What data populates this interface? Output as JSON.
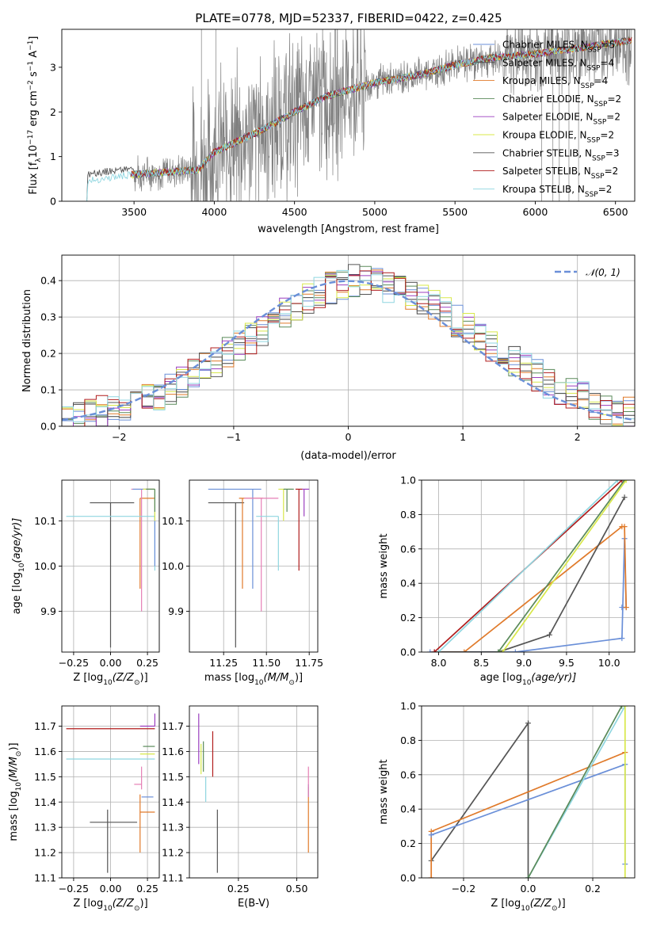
{
  "figure": {
    "title": "PLATE=0778, MJD=52337, FIBERID=0422, z=0.425"
  },
  "colors": {
    "chabrier_miles": "#6a8fd8",
    "salpeter_miles": "#444444",
    "kroupa_miles": "#e07a2a",
    "chabrier_elodie": "#5a8a5a",
    "salpeter_elodie": "#9b3fbf",
    "kroupa_elodie": "#d8e84a",
    "chabrier_stelib": "#555555",
    "salpeter_stelib": "#b01c1c",
    "kroupa_stelib": "#8fd6e0",
    "data": "#808080",
    "pink": "#e67fb5",
    "normal": "#6a8fd8"
  },
  "chart_data": [
    {
      "id": "spectrum",
      "type": "line",
      "xlabel": "wavelength [Angstrom, rest frame]",
      "ylabel_main": "Flux [f",
      "ylabel_sub": "λ",
      "ylabel_rest": "10",
      "ylabel_exp1": "−17",
      "ylabel_mid": " erg cm",
      "ylabel_exp2": "−2",
      "ylabel_mid2": " s",
      "ylabel_exp3": "−1",
      "ylabel_mid3": " A",
      "ylabel_exp4": "−1",
      "ylabel_end": "]",
      "xlim": [
        3050,
        6620
      ],
      "ylim": [
        0,
        3.85
      ],
      "xticks": [
        "3500",
        "4000",
        "4500",
        "5000",
        "5500",
        "6000",
        "6500"
      ],
      "xtick_values": [
        3500,
        4000,
        4500,
        5000,
        5500,
        6000,
        6500
      ],
      "yticks": [
        "0",
        "1",
        "2",
        "3"
      ],
      "ytick_values": [
        0,
        1,
        2,
        3
      ],
      "legend": [
        {
          "name": "Chabrier MILES, N",
          "sub": "SSP",
          "n": "=5",
          "color_key": "chabrier_miles"
        },
        {
          "name": "Salpeter MILES, N",
          "sub": "SSP",
          "n": "=4",
          "color_key": "salpeter_miles"
        },
        {
          "name": "Kroupa MILES, N",
          "sub": "SSP",
          "n": "=4",
          "color_key": "kroupa_miles"
        },
        {
          "name": "Chabrier ELODIE, N",
          "sub": "SSP",
          "n": "=2",
          "color_key": "chabrier_elodie"
        },
        {
          "name": "Salpeter ELODIE, N",
          "sub": "SSP",
          "n": "=2",
          "color_key": "salpeter_elodie"
        },
        {
          "name": "Kroupa ELODIE, N",
          "sub": "SSP",
          "n": "=2",
          "color_key": "kroupa_elodie"
        },
        {
          "name": "Chabrier STELIB, N",
          "sub": "SSP",
          "n": "=3",
          "color_key": "chabrier_stelib"
        },
        {
          "name": "Salpeter STELIB, N",
          "sub": "SSP",
          "n": "=2",
          "color_key": "salpeter_stelib"
        },
        {
          "name": "Kroupa STELIB, N",
          "sub": "SSP",
          "n": "=2",
          "color_key": "kroupa_stelib"
        }
      ],
      "legend_placement": "top-right",
      "continuum": {
        "x": [
          3200,
          3500,
          3900,
          4000,
          4300,
          4500,
          4700,
          5000,
          5300,
          5500,
          5700,
          6000,
          6300,
          6600
        ],
        "y": [
          0.45,
          0.6,
          0.7,
          1.1,
          1.6,
          2.0,
          2.35,
          2.65,
          2.85,
          3.05,
          3.2,
          3.3,
          3.45,
          3.6
        ]
      }
    },
    {
      "id": "residuals",
      "type": "histogram",
      "xlabel": "(data-model)/error",
      "ylabel": "Normed distribution",
      "xlim": [
        -2.5,
        2.5
      ],
      "ylim": [
        0,
        0.47
      ],
      "xticks": [
        "−2",
        "−1",
        "0",
        "1",
        "2"
      ],
      "xtick_values": [
        -2,
        -1,
        0,
        1,
        2
      ],
      "yticks": [
        "0.0",
        "0.1",
        "0.2",
        "0.3",
        "0.4"
      ],
      "ytick_values": [
        0,
        0.1,
        0.2,
        0.3,
        0.4
      ],
      "legend_label": "𝒩(0, 1)",
      "legend_placement": "top-right",
      "bin_width": 0.1,
      "bins_start": -2.5,
      "base_values": [
        0.02,
        0.03,
        0.04,
        0.04,
        0.05,
        0.06,
        0.07,
        0.08,
        0.08,
        0.1,
        0.12,
        0.14,
        0.16,
        0.18,
        0.2,
        0.22,
        0.24,
        0.26,
        0.29,
        0.31,
        0.33,
        0.35,
        0.37,
        0.38,
        0.39,
        0.4,
        0.4,
        0.39,
        0.38,
        0.37,
        0.36,
        0.35,
        0.33,
        0.31,
        0.29,
        0.27,
        0.24,
        0.22,
        0.2,
        0.18,
        0.16,
        0.14,
        0.12,
        0.1,
        0.09,
        0.08,
        0.06,
        0.05,
        0.04,
        0.04
      ]
    },
    {
      "id": "age_Z",
      "type": "errorbar",
      "xlabel": "Z [log",
      "xlabel_sub": "10",
      "xlabel_rest": "(Z/Z",
      "xlabel_sun": "⊙",
      "xlabel_end": ")]",
      "ylabel": "age  [log",
      "ylabel_sub": "10",
      "ylabel_rest": "(age/yr)]",
      "xlim": [
        -0.33,
        0.33
      ],
      "ylim": [
        9.81,
        10.19
      ],
      "xticks": [
        "−0.25",
        "0.00",
        "0.25"
      ],
      "xtick_values": [
        -0.25,
        0,
        0.25
      ],
      "yticks": [
        "9.9",
        "10.0",
        "10.1"
      ],
      "ytick_values": [
        9.9,
        10.0,
        10.1
      ],
      "points": [
        {
          "x": 0.0,
          "y": 10.14,
          "xlo": 0.14,
          "xhi": 0.16,
          "ylo": 0.32,
          "yhi": 0.0,
          "color_key": "chabrier_stelib"
        },
        {
          "x": 0.2,
          "y": 10.15,
          "xlo": 0.0,
          "xhi": 0.1,
          "ylo": 0.2,
          "yhi": 0.0,
          "color_key": "kroupa_miles"
        },
        {
          "x": 0.21,
          "y": 10.17,
          "xlo": 0.07,
          "xhi": 0.08,
          "ylo": 0.27,
          "yhi": 0.0,
          "color_key": "pink"
        },
        {
          "x": 0.3,
          "y": 10.11,
          "xlo": 0.6,
          "xhi": 0.0,
          "ylo": 0.12,
          "yhi": 0.0,
          "color_key": "kroupa_stelib"
        },
        {
          "x": 0.3,
          "y": 10.17,
          "xlo": 0.15,
          "xhi": 0.0,
          "ylo": 0.17,
          "yhi": 0.0,
          "color_key": "chabrier_miles"
        },
        {
          "x": 0.3,
          "y": 10.17,
          "xlo": 0.08,
          "xhi": 0.0,
          "ylo": 0.07,
          "yhi": 0.0,
          "color_key": "kroupa_elodie"
        },
        {
          "x": 0.3,
          "y": 10.17,
          "xlo": 0.06,
          "xhi": 0.0,
          "ylo": 0.05,
          "yhi": 0.0,
          "color_key": "chabrier_elodie"
        }
      ]
    },
    {
      "id": "age_mass",
      "type": "errorbar",
      "xlabel": "mass [log",
      "xlabel_sub": "10",
      "xlabel_rest": "(M/M",
      "xlabel_sun": "⊙",
      "xlabel_end": ")]",
      "xlim": [
        11.05,
        11.8
      ],
      "ylim": [
        9.81,
        10.19
      ],
      "xticks": [
        "11.25",
        "11.50",
        "11.75"
      ],
      "xtick_values": [
        11.25,
        11.5,
        11.75
      ],
      "yticks": [
        "9.9",
        "10.0",
        "10.1"
      ],
      "ytick_values": [
        9.9,
        10.0,
        10.1
      ],
      "points": [
        {
          "x": 11.32,
          "y": 10.14,
          "xlo": 0.16,
          "xhi": 0.05,
          "ylo": 0.32,
          "yhi": 0.0,
          "color_key": "chabrier_stelib"
        },
        {
          "x": 11.36,
          "y": 10.15,
          "xlo": 0.02,
          "xhi": 0.12,
          "ylo": 0.2,
          "yhi": 0.0,
          "color_key": "kroupa_miles"
        },
        {
          "x": 11.42,
          "y": 10.17,
          "xlo": 0.26,
          "xhi": 0.05,
          "ylo": 0.22,
          "yhi": 0.0,
          "color_key": "chabrier_miles"
        },
        {
          "x": 11.47,
          "y": 10.15,
          "xlo": 0.1,
          "xhi": 0.1,
          "ylo": 0.25,
          "yhi": 0.0,
          "color_key": "pink"
        },
        {
          "x": 11.57,
          "y": 10.11,
          "xlo": 0.13,
          "xhi": 0.0,
          "ylo": 0.12,
          "yhi": 0.0,
          "color_key": "kroupa_stelib"
        },
        {
          "x": 11.6,
          "y": 10.17,
          "xlo": 0.03,
          "xhi": 0.05,
          "ylo": 0.07,
          "yhi": 0.0,
          "color_key": "kroupa_elodie"
        },
        {
          "x": 11.62,
          "y": 10.17,
          "xlo": 0.02,
          "xhi": 0.04,
          "ylo": 0.05,
          "yhi": 0.0,
          "color_key": "chabrier_elodie"
        },
        {
          "x": 11.69,
          "y": 10.17,
          "xlo": 0.02,
          "xhi": 0.02,
          "ylo": 0.18,
          "yhi": 0.0,
          "color_key": "salpeter_stelib"
        },
        {
          "x": 11.72,
          "y": 10.17,
          "xlo": 0.01,
          "xhi": 0.03,
          "ylo": 0.06,
          "yhi": 0.0,
          "color_key": "salpeter_elodie"
        }
      ]
    },
    {
      "id": "cum_age",
      "type": "line",
      "xlabel": "age  [log",
      "xlabel_sub": "10",
      "xlabel_rest": "(age/yr)]",
      "ylabel": "mass weight",
      "xlim": [
        7.8,
        10.3
      ],
      "ylim": [
        0,
        1.0
      ],
      "xticks": [
        "8.0",
        "8.5",
        "9.0",
        "9.5",
        "10.0"
      ],
      "xtick_values": [
        8.0,
        8.5,
        9.0,
        9.5,
        10.0
      ],
      "yticks": [
        "0.0",
        "0.2",
        "0.4",
        "0.6",
        "0.8",
        "1.0"
      ],
      "ytick_values": [
        0,
        0.2,
        0.4,
        0.6,
        0.8,
        1.0
      ],
      "series": [
        {
          "color_key": "chabrier_miles",
          "x": [
            7.9,
            8.9,
            10.15,
            10.18,
            10.2,
            10.15
          ],
          "y": [
            0.0,
            0.0,
            0.08,
            0.66,
            0.26,
            0.26
          ]
        },
        {
          "color_key": "kroupa_miles",
          "x": [
            7.95,
            8.3,
            10.15,
            10.18,
            10.2
          ],
          "y": [
            0.0,
            0.0,
            0.73,
            0.73,
            0.26
          ]
        },
        {
          "color_key": "chabrier_stelib",
          "x": [
            7.95,
            8.7,
            9.3,
            10.18
          ],
          "y": [
            0.0,
            0.0,
            0.1,
            0.9
          ]
        },
        {
          "color_key": "salpeter_stelib",
          "x": [
            7.95,
            10.15
          ],
          "y": [
            0.0,
            1.0
          ]
        },
        {
          "color_key": "chabrier_elodie",
          "x": [
            8.7,
            10.18
          ],
          "y": [
            0.0,
            1.0
          ]
        },
        {
          "color_key": "kroupa_elodie",
          "x": [
            8.75,
            10.2
          ],
          "y": [
            0.0,
            1.0
          ]
        },
        {
          "color_key": "kroupa_stelib",
          "x": [
            8.0,
            10.1
          ],
          "y": [
            0.0,
            1.0
          ]
        }
      ]
    },
    {
      "id": "mass_Z",
      "type": "errorbar",
      "xlabel": "Z [log",
      "xlabel_sub": "10",
      "xlabel_rest": "(Z/Z",
      "xlabel_sun": "⊙",
      "xlabel_end": ")]",
      "ylabel": "mass [log",
      "ylabel_sub": "10",
      "ylabel_rest": "(M/M",
      "ylabel_sun": "⊙",
      "ylabel_end": ")]",
      "xlim": [
        -0.33,
        0.33
      ],
      "ylim": [
        11.1,
        11.78
      ],
      "xticks": [
        "−0.25",
        "0.00",
        "0.25"
      ],
      "xtick_values": [
        -0.25,
        0,
        0.25
      ],
      "yticks": [
        "11.1",
        "11.2",
        "11.3",
        "11.4",
        "11.5",
        "11.6",
        "11.7"
      ],
      "ytick_values": [
        11.1,
        11.2,
        11.3,
        11.4,
        11.5,
        11.6,
        11.7
      ],
      "points": [
        {
          "x": -0.02,
          "y": 11.32,
          "xlo": 0.12,
          "xhi": 0.2,
          "ylo": 0.2,
          "yhi": 0.05,
          "color_key": "chabrier_stelib"
        },
        {
          "x": 0.2,
          "y": 11.36,
          "xlo": 0.0,
          "xhi": 0.1,
          "ylo": 0.16,
          "yhi": 0.07,
          "color_key": "kroupa_miles"
        },
        {
          "x": 0.21,
          "y": 11.42,
          "xlo": 0.0,
          "xhi": 0.08,
          "ylo": 0.0,
          "yhi": 0.0,
          "color_key": "chabrier_miles"
        },
        {
          "x": 0.21,
          "y": 11.47,
          "xlo": 0.05,
          "xhi": 0.0,
          "ylo": 0.02,
          "yhi": 0.07,
          "color_key": "pink"
        },
        {
          "x": 0.3,
          "y": 11.57,
          "xlo": 0.6,
          "xhi": 0.0,
          "ylo": 0.0,
          "yhi": 0.0,
          "color_key": "kroupa_stelib"
        },
        {
          "x": 0.3,
          "y": 11.59,
          "xlo": 0.1,
          "xhi": 0.0,
          "ylo": 0.0,
          "yhi": 0.0,
          "color_key": "kroupa_elodie"
        },
        {
          "x": 0.3,
          "y": 11.62,
          "xlo": 0.08,
          "xhi": 0.0,
          "ylo": 0.0,
          "yhi": 0.0,
          "color_key": "chabrier_elodie"
        },
        {
          "x": 0.3,
          "y": 11.69,
          "xlo": 0.6,
          "xhi": 0.0,
          "ylo": 0.0,
          "yhi": 0.0,
          "color_key": "salpeter_stelib"
        },
        {
          "x": 0.3,
          "y": 11.7,
          "xlo": 0.1,
          "xhi": 0.0,
          "ylo": 0.0,
          "yhi": 0.05,
          "color_key": "salpeter_elodie"
        }
      ]
    },
    {
      "id": "mass_ebv",
      "type": "errorbar",
      "xlabel": "E(B-V)",
      "xlim": [
        0.04,
        0.59
      ],
      "ylim": [
        11.1,
        11.78
      ],
      "xticks": [
        "0.25",
        "0.50"
      ],
      "xtick_values": [
        0.25,
        0.5
      ],
      "yticks": [
        "11.1",
        "11.2",
        "11.3",
        "11.4",
        "11.5",
        "11.6",
        "11.7"
      ],
      "ytick_values": [
        11.1,
        11.2,
        11.3,
        11.4,
        11.5,
        11.6,
        11.7
      ],
      "points": [
        {
          "x": 0.16,
          "y": 11.3,
          "xlo": 0.0,
          "xhi": 0.0,
          "ylo": 0.18,
          "yhi": 0.07,
          "color_key": "chabrier_stelib"
        },
        {
          "x": 0.55,
          "y": 11.36,
          "xlo": 0.0,
          "xhi": 0.0,
          "ylo": 0.16,
          "yhi": 0.1,
          "color_key": "kroupa_miles"
        },
        {
          "x": 0.55,
          "y": 11.42,
          "xlo": 0.0,
          "xhi": 0.0,
          "ylo": 0.0,
          "yhi": 0.05,
          "color_key": "chabrier_miles"
        },
        {
          "x": 0.55,
          "y": 11.47,
          "xlo": 0.0,
          "xhi": 0.0,
          "ylo": 0.05,
          "yhi": 0.07,
          "color_key": "pink"
        },
        {
          "x": 0.11,
          "y": 11.5,
          "xlo": 0.0,
          "xhi": 0.0,
          "ylo": 0.1,
          "yhi": 0.0,
          "color_key": "kroupa_stelib"
        },
        {
          "x": 0.09,
          "y": 11.58,
          "xlo": 0.0,
          "xhi": 0.0,
          "ylo": 0.07,
          "yhi": 0.05,
          "color_key": "kroupa_elodie"
        },
        {
          "x": 0.1,
          "y": 11.6,
          "xlo": 0.0,
          "xhi": 0.0,
          "ylo": 0.08,
          "yhi": 0.04,
          "color_key": "chabrier_elodie"
        },
        {
          "x": 0.14,
          "y": 11.6,
          "xlo": 0.0,
          "xhi": 0.0,
          "ylo": 0.1,
          "yhi": 0.08,
          "color_key": "salpeter_stelib"
        },
        {
          "x": 0.08,
          "y": 11.65,
          "xlo": 0.0,
          "xhi": 0.0,
          "ylo": 0.1,
          "yhi": 0.1,
          "color_key": "salpeter_elodie"
        }
      ]
    },
    {
      "id": "cum_Z",
      "type": "line",
      "xlabel": "Z [log",
      "xlabel_sub": "10",
      "xlabel_rest": "(Z/Z",
      "xlabel_sun": "⊙",
      "xlabel_end": ")]",
      "ylabel": "mass weight",
      "xlim": [
        -0.33,
        0.33
      ],
      "ylim": [
        0,
        1.0
      ],
      "xticks": [
        "−0.2",
        "0.0",
        "0.2"
      ],
      "xtick_values": [
        -0.2,
        0,
        0.2
      ],
      "yticks": [
        "0.0",
        "0.2",
        "0.4",
        "0.6",
        "0.8",
        "1.0"
      ],
      "ytick_values": [
        0,
        0.2,
        0.4,
        0.6,
        0.8,
        1.0
      ],
      "series": [
        {
          "color_key": "chabrier_stelib",
          "x": [
            -0.3,
            0.0,
            0.0
          ],
          "y": [
            0.1,
            0.9,
            0.0
          ]
        },
        {
          "color_key": "kroupa_miles",
          "x": [
            -0.3,
            -0.3,
            0.3
          ],
          "y": [
            0.0,
            0.27,
            0.73
          ]
        },
        {
          "color_key": "chabrier_miles",
          "x": [
            -0.3,
            0.3,
            0.3
          ],
          "y": [
            0.25,
            0.66,
            0.08
          ]
        },
        {
          "color_key": "kroupa_stelib",
          "x": [
            0.0,
            0.3
          ],
          "y": [
            0.0,
            1.0
          ]
        },
        {
          "color_key": "chabrier_elodie",
          "x": [
            0.0,
            0.29
          ],
          "y": [
            0.0,
            1.0
          ]
        },
        {
          "color_key": "kroupa_elodie",
          "x": [
            0.3,
            0.3
          ],
          "y": [
            0.0,
            1.0
          ]
        }
      ]
    }
  ]
}
